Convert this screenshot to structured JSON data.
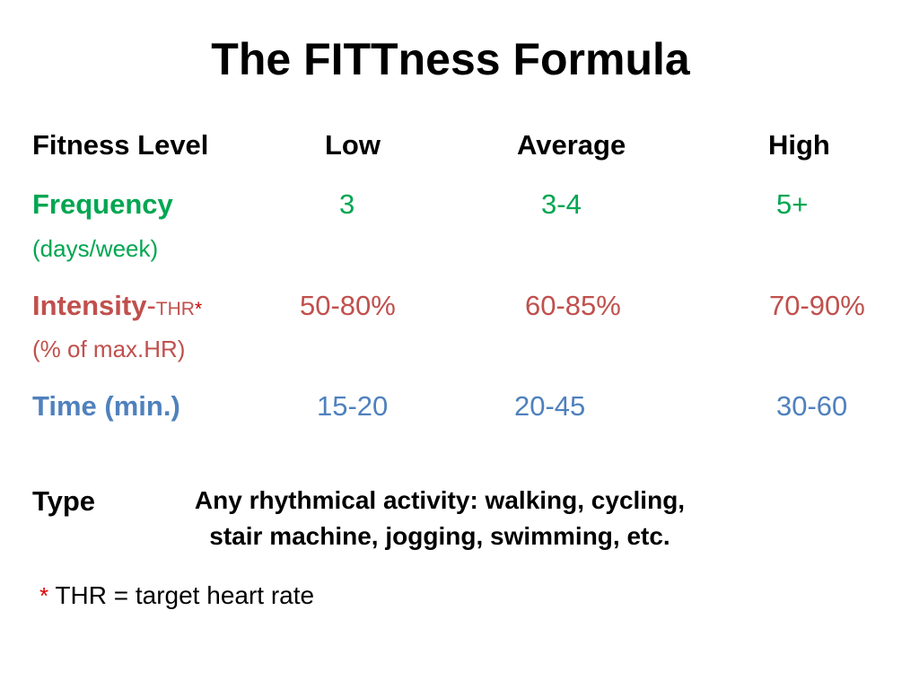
{
  "title": "The FITTness Formula",
  "header": {
    "label": "Fitness Level",
    "low": "Low",
    "average": "Average",
    "high": "High"
  },
  "frequency": {
    "label": "Frequency",
    "unit": "(days/week)",
    "low": "3",
    "average": "3-4",
    "high": "5+",
    "color": "#00a651"
  },
  "intensity": {
    "label": "Intensity",
    "dash": "-",
    "thr": "THR",
    "star": "*",
    "unit": "(% of max.HR)",
    "low": "50-80%",
    "average": "60-85%",
    "high": "70-90%",
    "color": "#c0504d"
  },
  "time": {
    "label": "Time (min.)",
    "low": "15-20",
    "average": "20-45",
    "high": "30-60",
    "color": "#4f81bd"
  },
  "type": {
    "label": "Type",
    "line1": "Any rhythmical activity: walking, cycling,",
    "line2": "stair machine, jogging, swimming, etc."
  },
  "footnote": {
    "star": "*",
    "text": "THR = target heart rate"
  }
}
